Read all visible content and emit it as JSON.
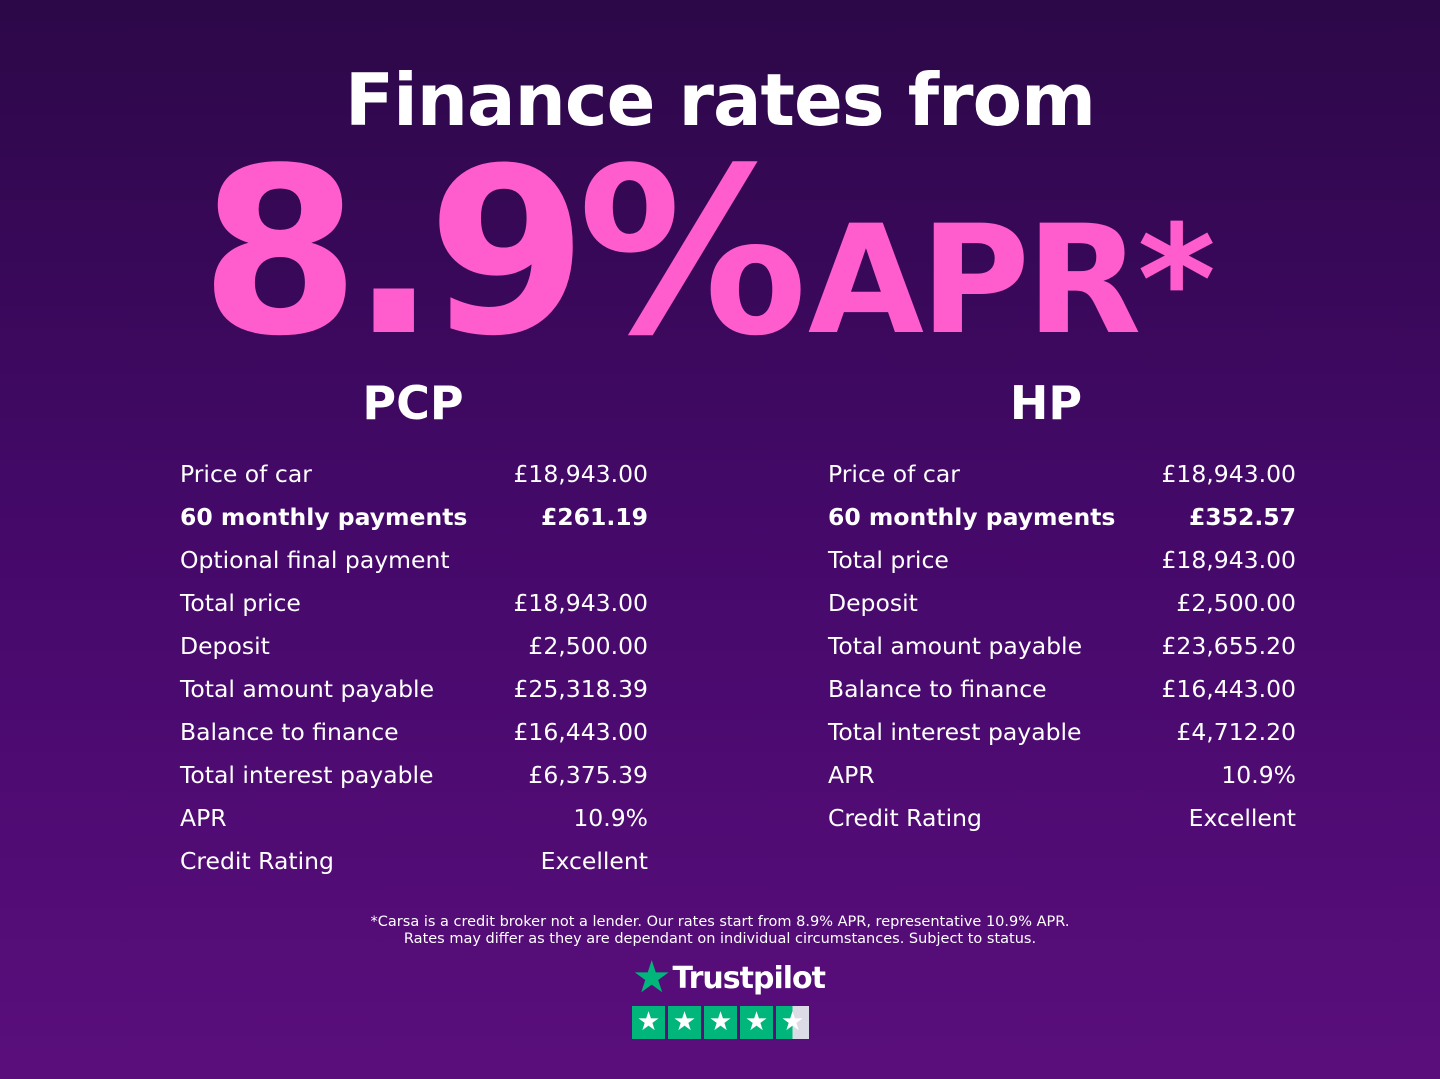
{
  "title": "Finance rates from",
  "rate": "8.9%",
  "apr": "APR*",
  "colors": {
    "accent": "#ff5ccd",
    "trustpilot_green": "#00b67a"
  },
  "pcp": {
    "heading": "PCP",
    "rows": [
      [
        "Price of car",
        "£18,943.00"
      ],
      [
        "60 monthly payments",
        "£261.19"
      ],
      [
        "Optional final payment",
        ""
      ],
      [
        "Total price",
        "£18,943.00"
      ],
      [
        "Deposit",
        "£2,500.00"
      ],
      [
        "Total amount payable",
        "£25,318.39"
      ],
      [
        "Balance to finance",
        "£16,443.00"
      ],
      [
        "Total interest payable",
        "£6,375.39"
      ],
      [
        "APR",
        "10.9%"
      ],
      [
        "Credit Rating",
        "Excellent"
      ]
    ]
  },
  "hp": {
    "heading": "HP",
    "rows": [
      [
        "Price of car",
        "£18,943.00"
      ],
      [
        "60 monthly payments",
        "£352.57"
      ],
      [
        "Total price",
        "£18,943.00"
      ],
      [
        "Deposit",
        "£2,500.00"
      ],
      [
        "Total amount payable",
        "£23,655.20"
      ],
      [
        "Balance to finance",
        "£16,443.00"
      ],
      [
        "Total interest payable",
        "£4,712.20"
      ],
      [
        "APR",
        "10.9%"
      ],
      [
        "Credit Rating",
        "Excellent"
      ]
    ]
  },
  "note": {
    "line1": "*Carsa is a credit broker not a lender. Our rates start from 8.9% APR, representative 10.9% APR.",
    "line2": "Rates may differ as they are dependant on individual circumstances. Subject to status."
  },
  "trustpilot": {
    "name": "Trustpilot",
    "rating_stars": 4.5
  }
}
